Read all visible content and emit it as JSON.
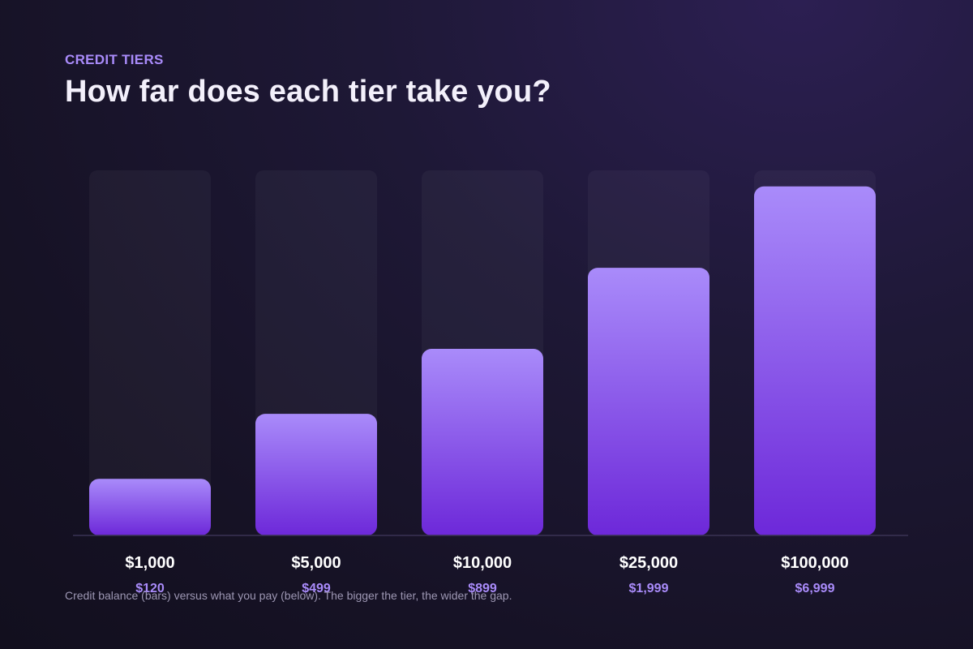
{
  "header": {
    "eyebrow": "CREDIT TIERS",
    "title": "How far does each tier take you?"
  },
  "footnote": "Credit balance (bars) versus what you pay (below). The bigger the tier, the wider the gap.",
  "colors": {
    "bar_top": "#a98bfa",
    "bar_bottom": "#6d28d9",
    "track": "#ffffff",
    "baseline": "#3a3354",
    "tier_label": "#ffffff",
    "price_label": "#a98bfa"
  },
  "chart_data": {
    "type": "bar",
    "categories": [
      "$1,000",
      "$5,000",
      "$10,000",
      "$25,000",
      "$100,000"
    ],
    "prices": [
      "$120",
      "$499",
      "$899",
      "$1,999",
      "$6,999"
    ],
    "values": [
      15.5,
      33.3,
      51.1,
      73.3,
      95.6
    ],
    "ylim": [
      0,
      100
    ],
    "grid": false
  }
}
